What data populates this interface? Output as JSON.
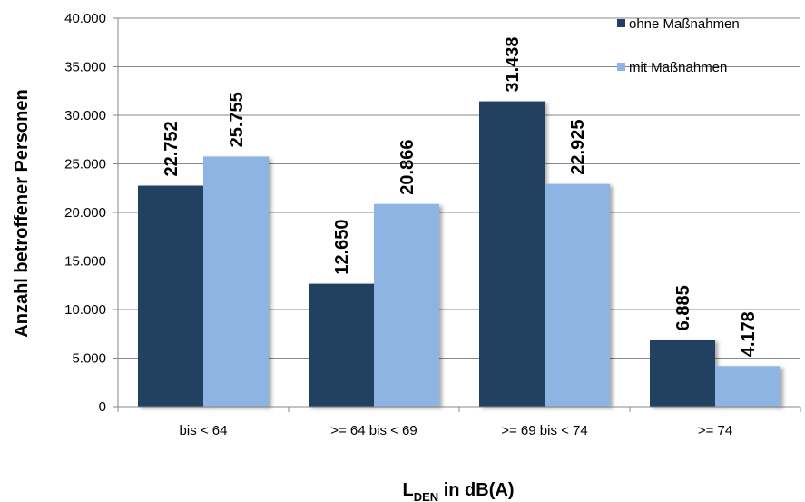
{
  "chart_data": {
    "type": "bar",
    "title": "",
    "categories": [
      "bis < 64",
      ">= 64 bis < 69",
      ">= 69 bis < 74",
      ">= 74"
    ],
    "series": [
      {
        "name": "ohne Maßnahmen",
        "color": "#243f60",
        "values": [
          22752,
          12650,
          31438,
          6885
        ],
        "labels": [
          "22.752",
          "12.650",
          "31.438",
          "6.885"
        ]
      },
      {
        "name": "mit Maßnahmen",
        "color": "#8eb4e3",
        "values": [
          25755,
          20866,
          22925,
          4178
        ],
        "labels": [
          "25.755",
          "20.866",
          "22.925",
          "4.178"
        ]
      }
    ],
    "ylabel": "Anzahl betroffener Personen",
    "xlabel": {
      "main": "L",
      "subscript": "DEN",
      "suffix": " in dB(A)"
    },
    "ylim": [
      0,
      40000
    ],
    "yticks": [
      0,
      5000,
      10000,
      15000,
      20000,
      25000,
      30000,
      35000,
      40000
    ],
    "ytick_labels": [
      "0",
      "5.000",
      "10.000",
      "15.000",
      "20.000",
      "25.000",
      "30.000",
      "35.000",
      "40.000"
    ],
    "grid": true,
    "legend_position": "top-right"
  }
}
